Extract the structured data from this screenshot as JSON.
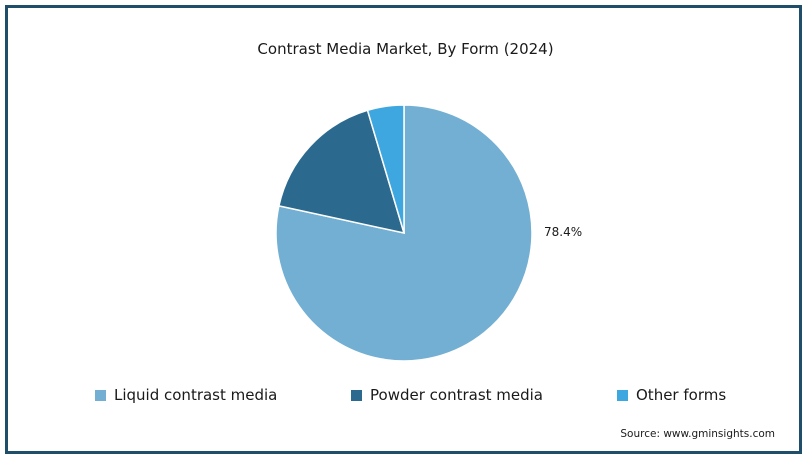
{
  "chart_data": {
    "type": "pie",
    "title": "Contrast Media Market, By Form (2024)",
    "slices": [
      {
        "name": "Liquid contrast media",
        "value": 78.4,
        "label": "78.4%",
        "color": "#72afd2"
      },
      {
        "name": "Powder contrast media",
        "value": 17.0,
        "label": "",
        "color": "#2b6a8e"
      },
      {
        "name": "Other forms",
        "value": 4.6,
        "label": "",
        "color": "#3fa7df"
      }
    ],
    "legend_position": "bottom"
  },
  "source": "Source: www.gminsights.com",
  "frame_color": "#1f4e6b"
}
